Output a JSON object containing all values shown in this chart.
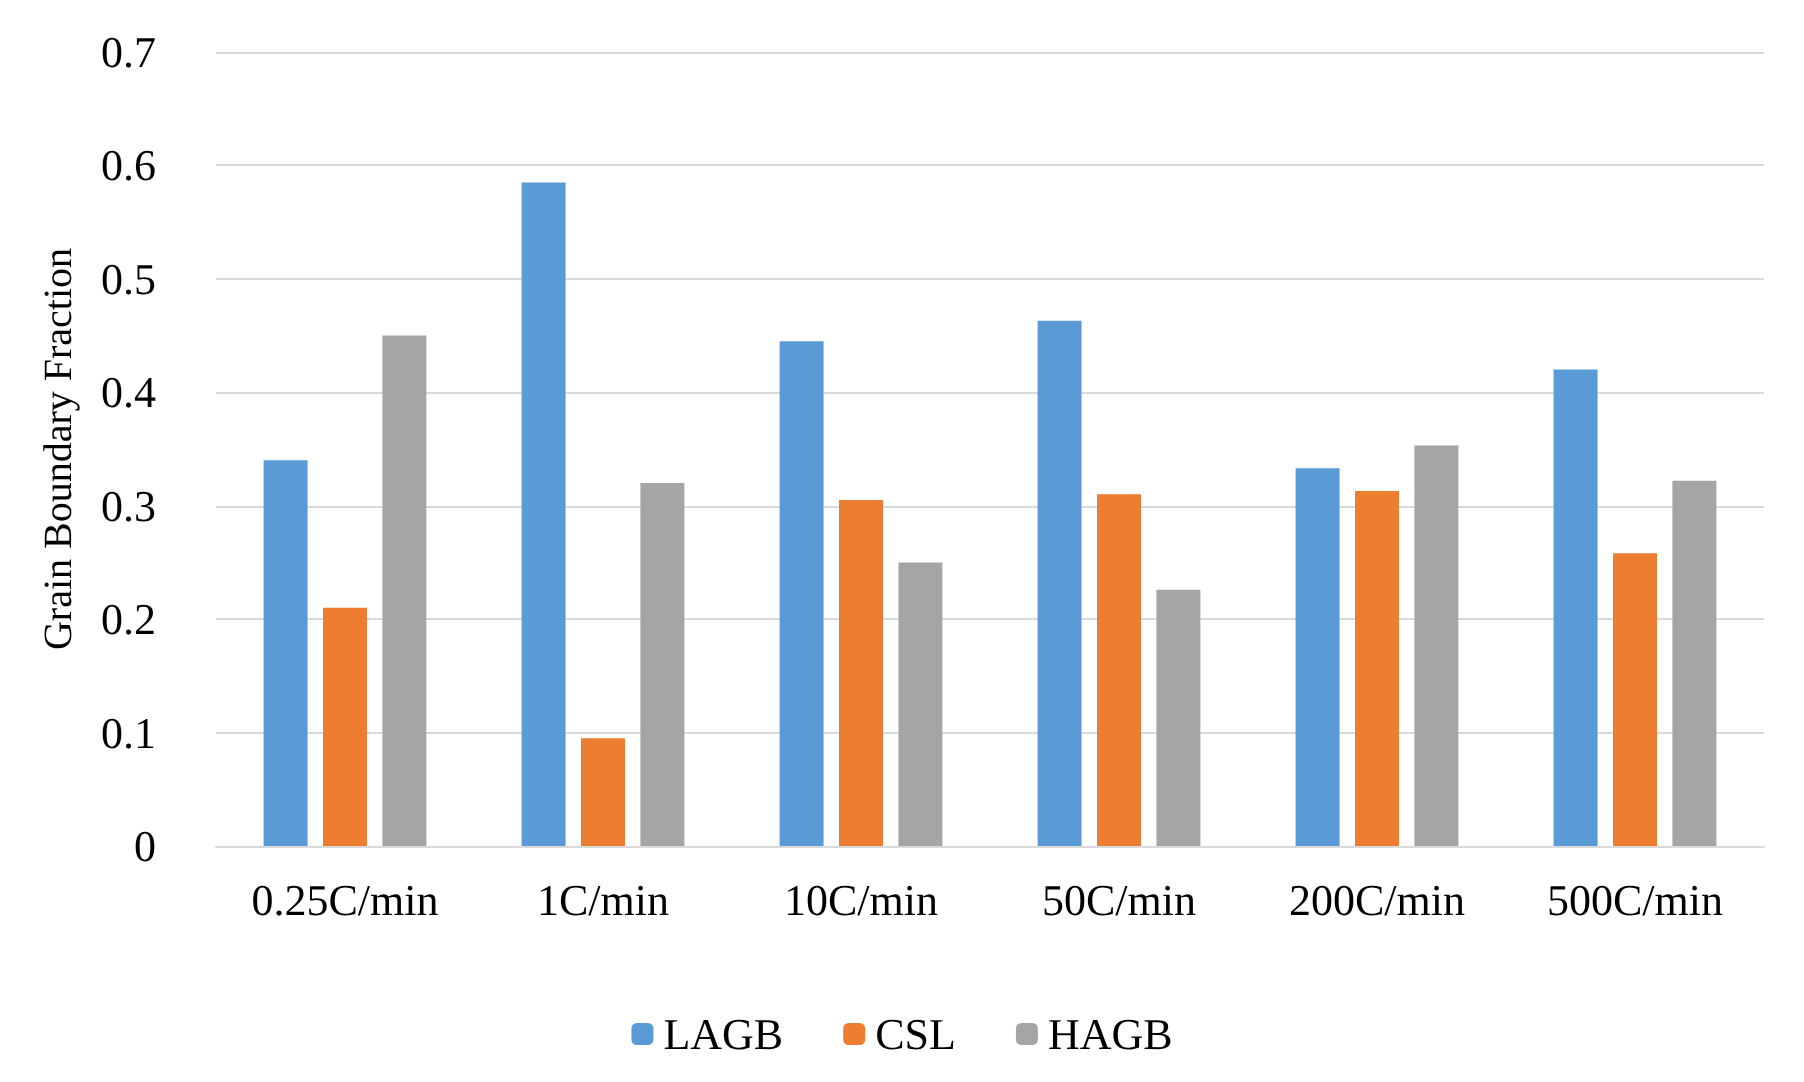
{
  "chart_data": {
    "type": "bar",
    "ylabel": "Grain Boundary Fraction",
    "categories": [
      "0.25C/min",
      "1C/min",
      "10C/min",
      "50C/min",
      "200C/min",
      "500C/min"
    ],
    "series": [
      {
        "name": "LAGB",
        "color": "#5b9bd5",
        "values": [
          0.34,
          0.585,
          0.445,
          0.463,
          0.333,
          0.42
        ]
      },
      {
        "name": "CSL",
        "color": "#ed7d31",
        "values": [
          0.21,
          0.095,
          0.305,
          0.31,
          0.313,
          0.258
        ]
      },
      {
        "name": "HAGB",
        "color": "#a5a5a5",
        "values": [
          0.45,
          0.32,
          0.25,
          0.226,
          0.353,
          0.322
        ]
      }
    ],
    "ylim": [
      0,
      0.7
    ],
    "yticks": [
      0,
      0.1,
      0.2,
      0.3,
      0.4,
      0.5,
      0.6,
      0.7
    ],
    "grid": "y",
    "legend": "bottom"
  }
}
